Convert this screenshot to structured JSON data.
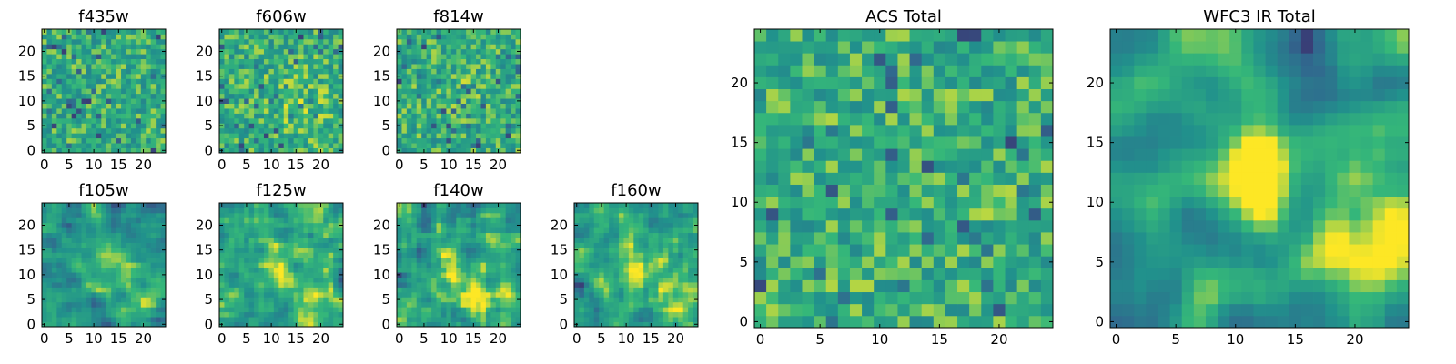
{
  "figure": {
    "colormap": "viridis",
    "colormap_stops": [
      "#440154",
      "#31688e",
      "#21918c",
      "#35b779",
      "#fde725"
    ],
    "background": "#ffffff"
  },
  "chart_data": [
    {
      "type": "heatmap",
      "title": "f435w",
      "grid_size": 25,
      "xlim": [
        -0.5,
        24.5
      ],
      "ylim": [
        -0.5,
        24.5
      ],
      "xticks": [
        0,
        5,
        10,
        15,
        20
      ],
      "yticks": [
        0,
        5,
        10,
        15,
        20
      ],
      "xtick_labels": [
        "0",
        "5",
        "10",
        "15",
        "20"
      ],
      "ytick_labels": [
        "0",
        "5",
        "10",
        "15",
        "20"
      ],
      "smoothness": 0,
      "seed": 11,
      "spots": []
    },
    {
      "type": "heatmap",
      "title": "f606w",
      "grid_size": 25,
      "xlim": [
        -0.5,
        24.5
      ],
      "ylim": [
        -0.5,
        24.5
      ],
      "xticks": [
        0,
        5,
        10,
        15,
        20
      ],
      "yticks": [
        0,
        5,
        10,
        15,
        20
      ],
      "xtick_labels": [
        "0",
        "5",
        "10",
        "15",
        "20"
      ],
      "ytick_labels": [
        "0",
        "5",
        "10",
        "15",
        "20"
      ],
      "smoothness": 0,
      "seed": 23,
      "spots": [
        [
          14,
          12,
          4,
          0.08
        ],
        [
          18,
          6,
          4,
          0.08
        ]
      ]
    },
    {
      "type": "heatmap",
      "title": "f814w",
      "grid_size": 25,
      "xlim": [
        -0.5,
        24.5
      ],
      "ylim": [
        -0.5,
        24.5
      ],
      "xticks": [
        0,
        5,
        10,
        15,
        20
      ],
      "yticks": [
        0,
        5,
        10,
        15,
        20
      ],
      "xtick_labels": [
        "0",
        "5",
        "10",
        "15",
        "20"
      ],
      "ytick_labels": [
        "0",
        "5",
        "10",
        "15",
        "20"
      ],
      "smoothness": 0,
      "seed": 37,
      "spots": [
        [
          12,
          12,
          4,
          0.06
        ]
      ]
    },
    {
      "type": "heatmap",
      "title": "f105w",
      "grid_size": 25,
      "xlim": [
        -0.5,
        24.5
      ],
      "ylim": [
        -0.5,
        24.5
      ],
      "xticks": [
        0,
        5,
        10,
        15,
        20
      ],
      "yticks": [
        0,
        5,
        10,
        15,
        20
      ],
      "xtick_labels": [
        "0",
        "5",
        "10",
        "15",
        "20"
      ],
      "ytick_labels": [
        "0",
        "5",
        "10",
        "15",
        "20"
      ],
      "smoothness": 1,
      "seed": 41,
      "spots": [
        [
          12,
          12,
          3,
          0.25
        ],
        [
          19,
          5,
          4,
          0.22
        ]
      ]
    },
    {
      "type": "heatmap",
      "title": "f125w",
      "grid_size": 25,
      "xlim": [
        -0.5,
        24.5
      ],
      "ylim": [
        -0.5,
        24.5
      ],
      "xticks": [
        0,
        5,
        10,
        15,
        20
      ],
      "yticks": [
        0,
        5,
        10,
        15,
        20
      ],
      "xtick_labels": [
        "0",
        "5",
        "10",
        "15",
        "20"
      ],
      "ytick_labels": [
        "0",
        "5",
        "10",
        "15",
        "20"
      ],
      "smoothness": 1,
      "seed": 53,
      "spots": [
        [
          12,
          12,
          3,
          0.25
        ],
        [
          19,
          5,
          4,
          0.22
        ]
      ]
    },
    {
      "type": "heatmap",
      "title": "f140w",
      "grid_size": 25,
      "xlim": [
        -0.5,
        24.5
      ],
      "ylim": [
        -0.5,
        24.5
      ],
      "xticks": [
        0,
        5,
        10,
        15,
        20
      ],
      "yticks": [
        0,
        5,
        10,
        15,
        20
      ],
      "xtick_labels": [
        "0",
        "5",
        "10",
        "15",
        "20"
      ],
      "ytick_labels": [
        "0",
        "5",
        "10",
        "15",
        "20"
      ],
      "smoothness": 1,
      "seed": 67,
      "spots": [
        [
          11,
          11,
          3,
          0.28
        ],
        [
          17,
          5,
          4,
          0.25
        ]
      ]
    },
    {
      "type": "heatmap",
      "title": "f160w",
      "grid_size": 25,
      "xlim": [
        -0.5,
        24.5
      ],
      "ylim": [
        -0.5,
        24.5
      ],
      "xticks": [
        0,
        5,
        10,
        15,
        20
      ],
      "yticks": [
        0,
        5,
        10,
        15,
        20
      ],
      "xtick_labels": [
        "0",
        "5",
        "10",
        "15",
        "20"
      ],
      "ytick_labels": [
        "0",
        "5",
        "10",
        "15",
        "20"
      ],
      "smoothness": 1,
      "seed": 79,
      "spots": [
        [
          12,
          12,
          3,
          0.28
        ],
        [
          20,
          5,
          4,
          0.25
        ]
      ]
    },
    {
      "type": "heatmap",
      "title": "ACS Total",
      "grid_size": 25,
      "xlim": [
        -0.5,
        24.5
      ],
      "ylim": [
        -0.5,
        24.5
      ],
      "xticks": [
        0,
        5,
        10,
        15,
        20
      ],
      "yticks": [
        0,
        5,
        10,
        15,
        20
      ],
      "xtick_labels": [
        "0",
        "5",
        "10",
        "15",
        "20"
      ],
      "ytick_labels": [
        "0",
        "5",
        "10",
        "15",
        "20"
      ],
      "smoothness": 0,
      "seed": 97,
      "spots": [
        [
          12,
          12,
          5,
          0.05
        ]
      ]
    },
    {
      "type": "heatmap",
      "title": "WFC3 IR Total",
      "grid_size": 25,
      "xlim": [
        -0.5,
        24.5
      ],
      "ylim": [
        -0.5,
        24.5
      ],
      "xticks": [
        0,
        5,
        10,
        15,
        20
      ],
      "yticks": [
        0,
        5,
        10,
        15,
        20
      ],
      "xtick_labels": [
        "0",
        "5",
        "10",
        "15",
        "20"
      ],
      "ytick_labels": [
        "0",
        "5",
        "10",
        "15",
        "20"
      ],
      "smoothness": 2,
      "seed": 131,
      "spots": [
        [
          11.5,
          12.5,
          2.5,
          0.45
        ],
        [
          20,
          5,
          3.5,
          0.4
        ],
        [
          5,
          14,
          2,
          0.12
        ]
      ]
    }
  ]
}
